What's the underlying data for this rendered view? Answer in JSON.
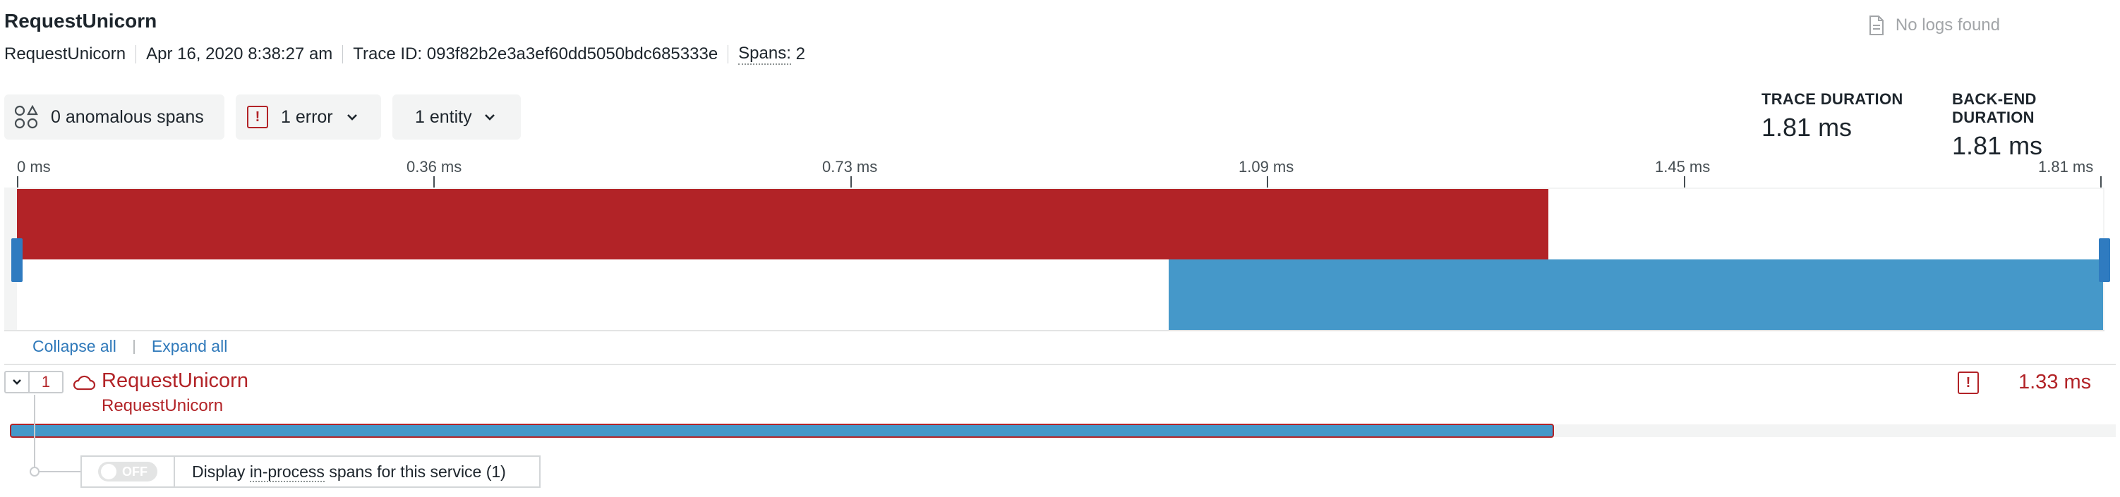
{
  "header": {
    "title": "RequestUnicorn",
    "service": "RequestUnicorn",
    "date": "Apr 16, 2020 8:38:27 am",
    "trace_id_label": "Trace ID:",
    "trace_id": "093f82b2e3a3ef60dd5050bdc685333e",
    "spans_label": "Spans:",
    "spans_count": "2",
    "no_logs": "No logs found"
  },
  "filters": {
    "anomalous": "0 anomalous spans",
    "errors": "1 error",
    "entities": "1 entity"
  },
  "durations": {
    "trace_label": "TRACE DURATION",
    "trace_value": "1.81 ms",
    "backend_label": "BACK-END DURATION",
    "backend_value": "1.81 ms"
  },
  "axis": {
    "ticks": [
      "0 ms",
      "0.36 ms",
      "0.73 ms",
      "1.09 ms",
      "1.45 ms",
      "1.81 ms"
    ]
  },
  "tree_controls": {
    "collapse": "Collapse all",
    "expand": "Expand all"
  },
  "span": {
    "child_count": "1",
    "name": "RequestUnicorn",
    "subtitle": "RequestUnicorn",
    "duration": "1.33 ms",
    "in_process": {
      "switch_label": "OFF",
      "text_before": "Display",
      "text_link": "in-process",
      "text_after": "spans for this service (1)"
    }
  },
  "colors": {
    "error": "#b22327",
    "span_blue": "#4598c9",
    "link": "#2f79ba"
  }
}
